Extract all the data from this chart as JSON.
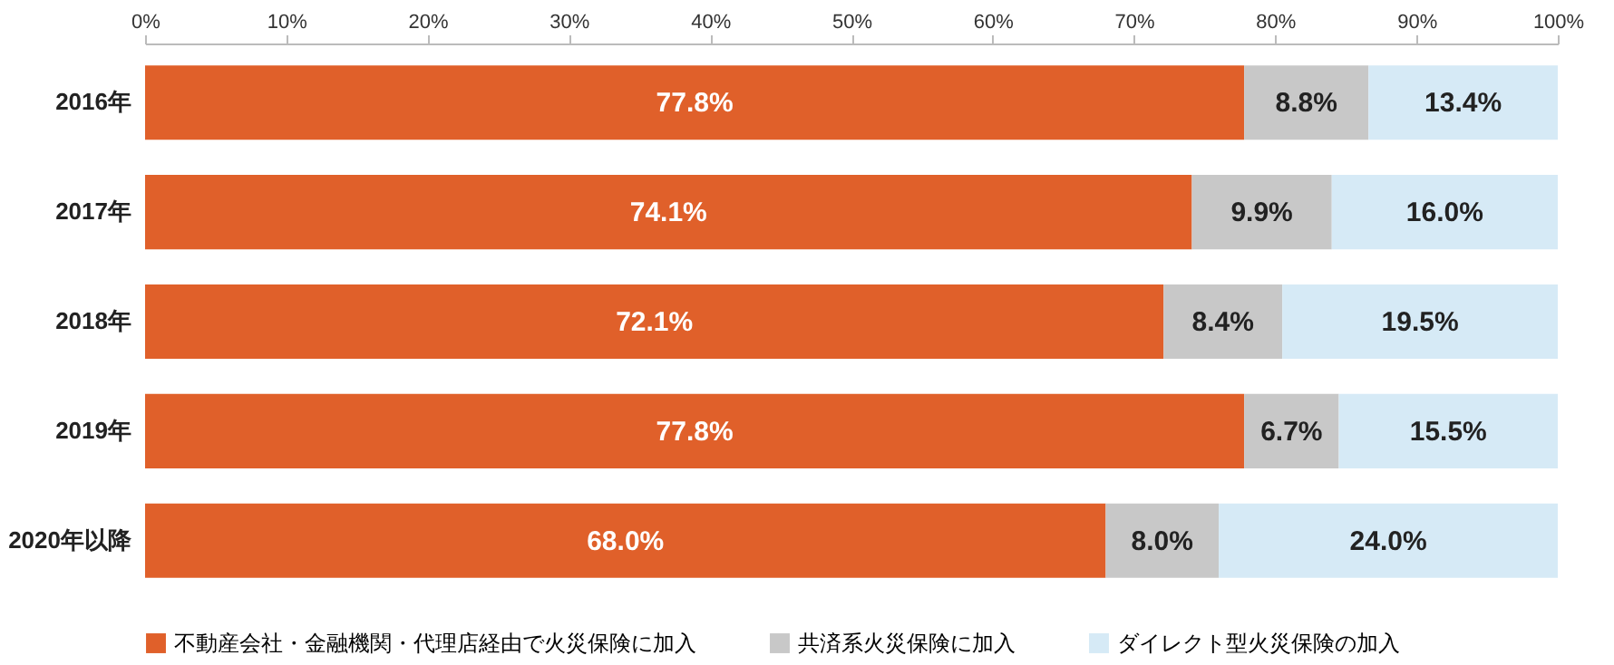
{
  "chart_data": {
    "type": "bar",
    "orientation": "horizontal",
    "stacked": true,
    "categories": [
      "2016年",
      "2017年",
      "2018年",
      "2019年",
      "2020年以降"
    ],
    "series": [
      {
        "name": "不動産会社・金融機関・代理店経由で火災保険に加入",
        "color": "#e0602a",
        "values": [
          77.8,
          74.1,
          72.1,
          77.8,
          68.0
        ],
        "value_labels": [
          "77.8%",
          "74.1%",
          "72.1%",
          "77.8%",
          "68.0%"
        ]
      },
      {
        "name": "共済系火災保険に加入",
        "color": "#c8c8c8",
        "values": [
          8.8,
          9.9,
          8.4,
          6.7,
          8.0
        ],
        "value_labels": [
          "8.8%",
          "9.9%",
          "8.4%",
          "6.7%",
          "8.0%"
        ]
      },
      {
        "name": "ダイレクト型火災保険の加入",
        "color": "#d6eaf6",
        "values": [
          13.4,
          16.0,
          19.5,
          15.5,
          24.0
        ],
        "value_labels": [
          "13.4%",
          "16.0%",
          "19.5%",
          "15.5%",
          "24.0%"
        ]
      }
    ],
    "xlim": [
      0,
      100
    ],
    "xticks": [
      {
        "value": 0,
        "label": "0%"
      },
      {
        "value": 10,
        "label": "10%"
      },
      {
        "value": 20,
        "label": "20%"
      },
      {
        "value": 30,
        "label": "30%"
      },
      {
        "value": 40,
        "label": "40%"
      },
      {
        "value": 50,
        "label": "50%"
      },
      {
        "value": 60,
        "label": "60%"
      },
      {
        "value": 70,
        "label": "70%"
      },
      {
        "value": 80,
        "label": "80%"
      },
      {
        "value": 90,
        "label": "90%"
      },
      {
        "value": 100,
        "label": "100%"
      }
    ],
    "legend": "bottom"
  }
}
